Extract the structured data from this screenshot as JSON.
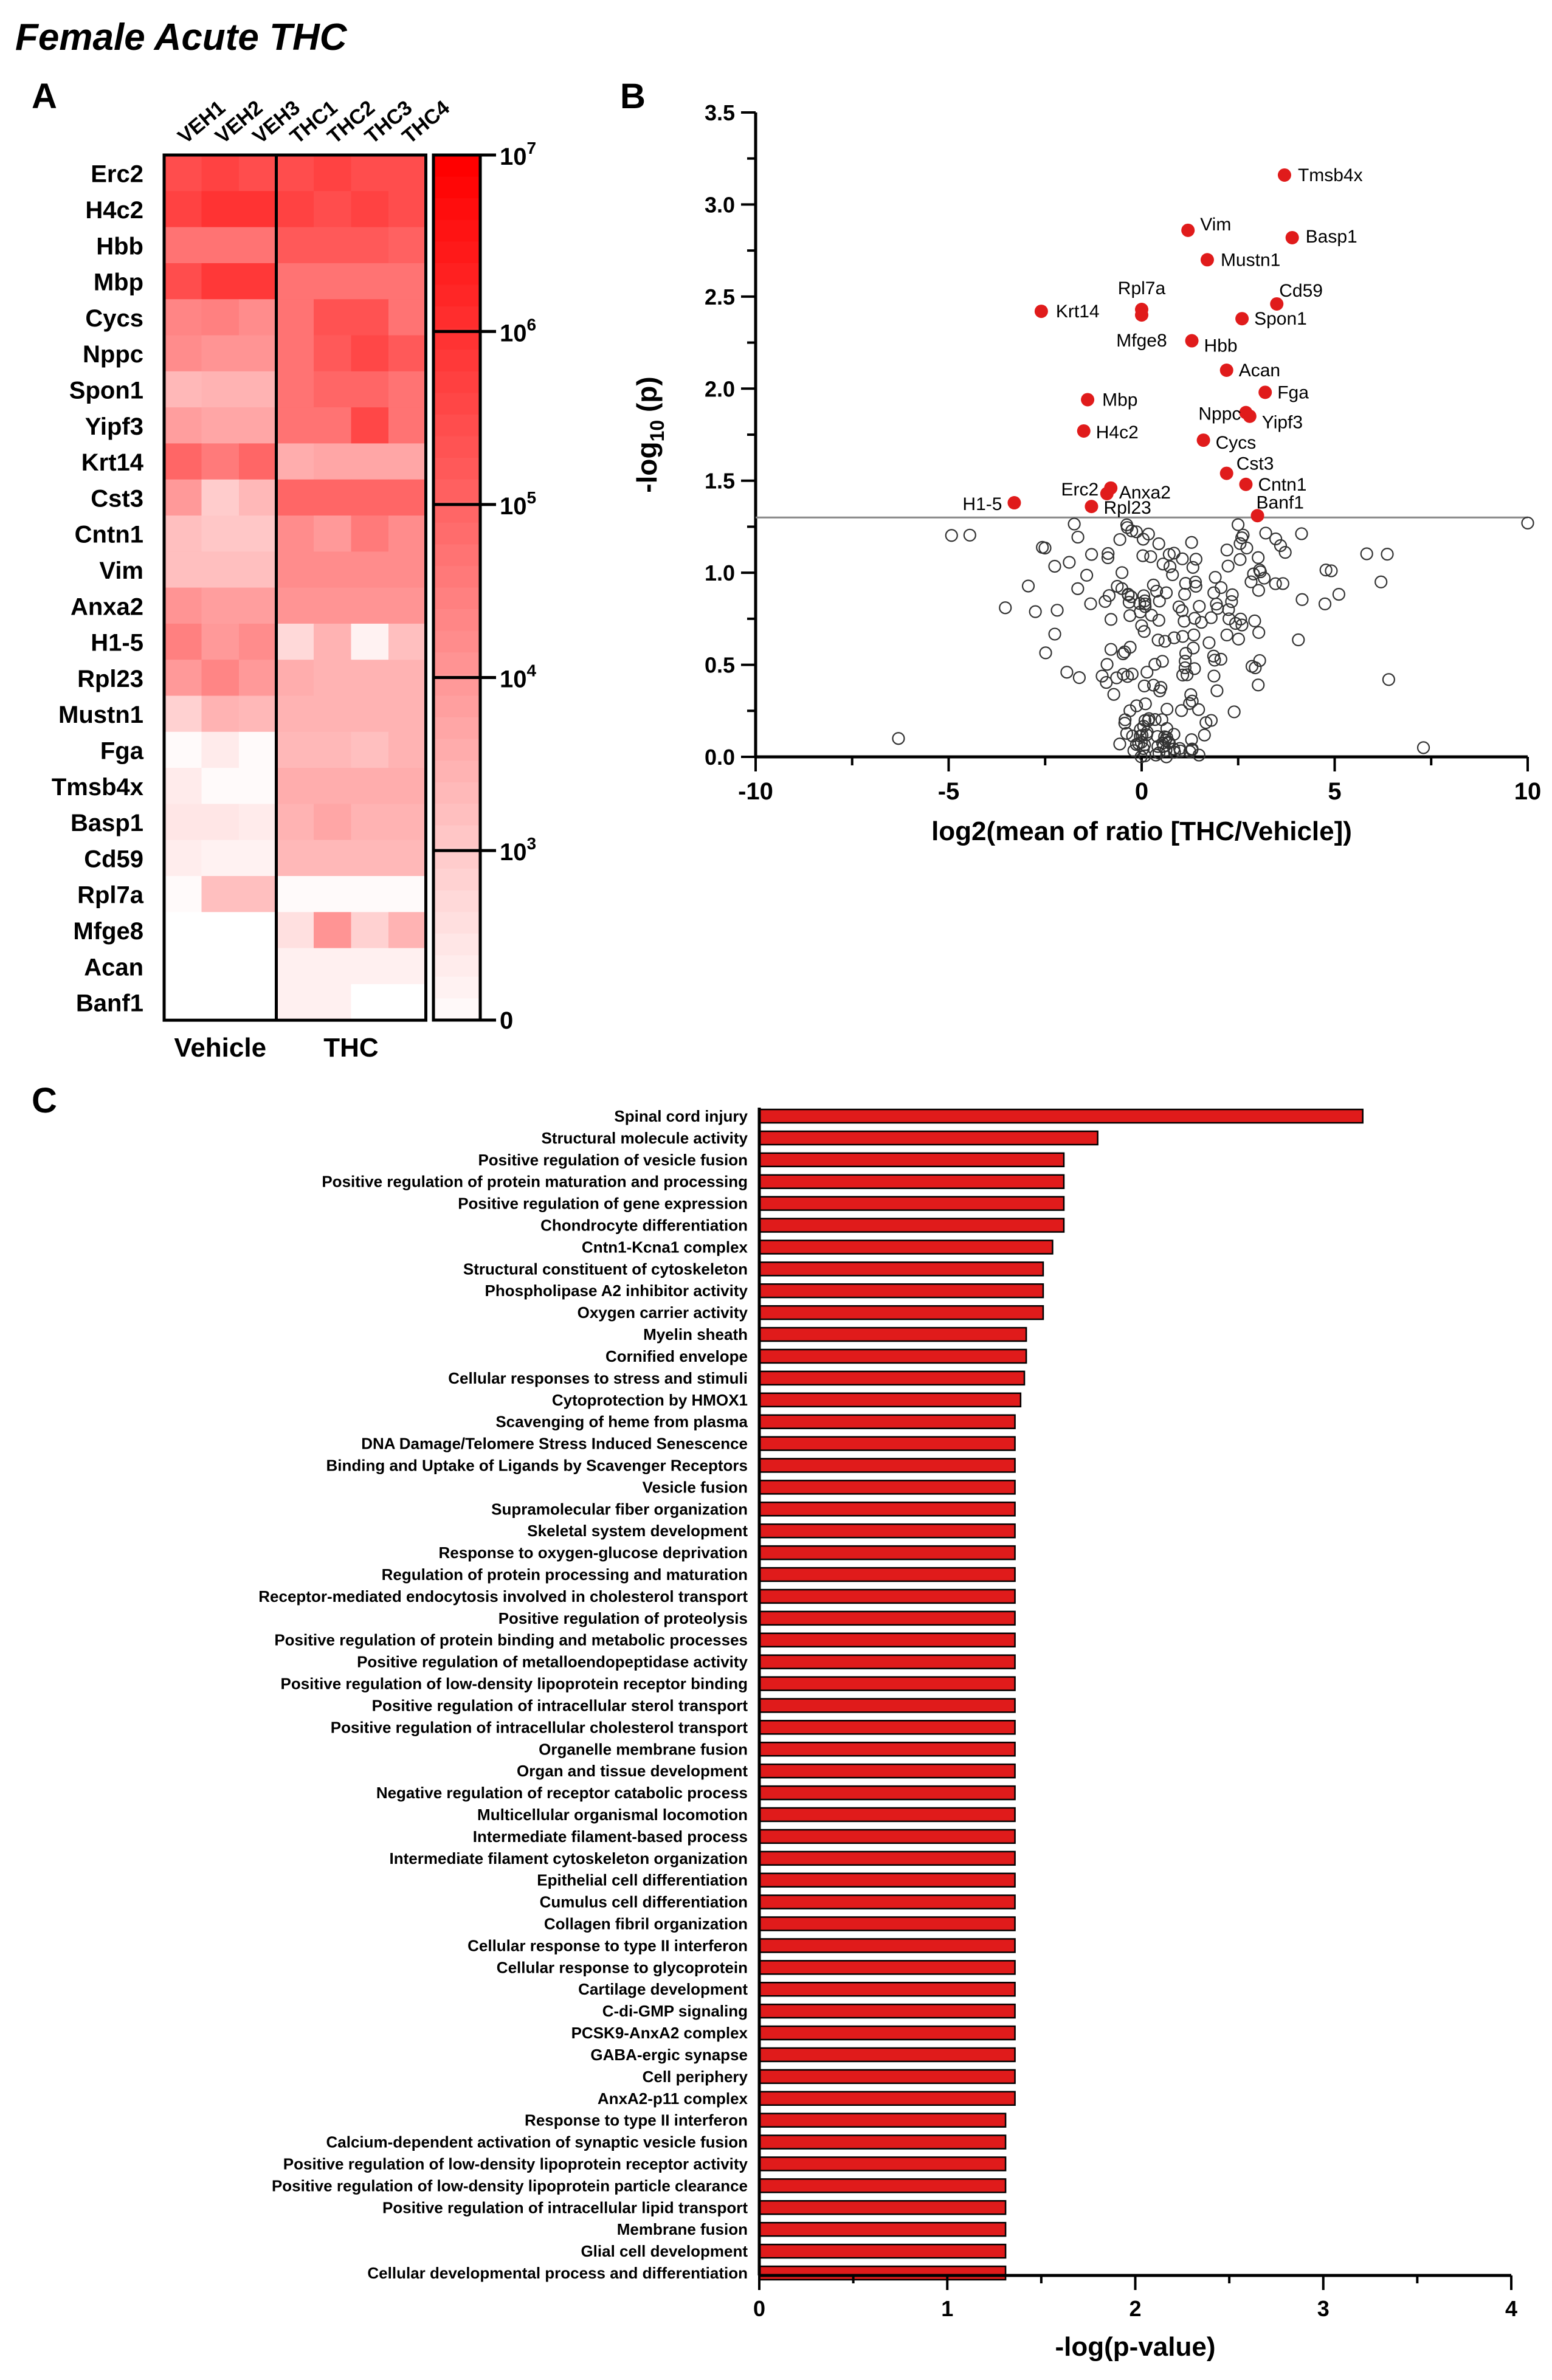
{
  "figure_title": "Female Acute THC",
  "panels": {
    "a": "A",
    "b": "B",
    "c": "C"
  },
  "colors": {
    "red": "#e01b1b",
    "heat_max": "#ff0000",
    "heat_min": "#ffffff",
    "black": "#000000",
    "gray": "#888888"
  },
  "chart_data": [
    {
      "type": "heatmap",
      "panel": "A",
      "columns": [
        "VEH1",
        "VEH2",
        "VEH3",
        "THC1",
        "THC2",
        "THC3",
        "THC4"
      ],
      "groups": [
        "Vehicle",
        "THC"
      ],
      "rows": [
        "Erc2",
        "H4c2",
        "Hbb",
        "Mbp",
        "Cycs",
        "Nppc",
        "Spon1",
        "Yipf3",
        "Krt14",
        "Cst3",
        "Cntn1",
        "Vim",
        "Anxa2",
        "H1-5",
        "Rpl23",
        "Mustn1",
        "Fga",
        "Tmsb4x",
        "Basp1",
        "Cd59",
        "Rpl7a",
        "Mfge8",
        "Acan",
        "Banf1"
      ],
      "intensity": [
        [
          0.7,
          0.74,
          0.7,
          0.7,
          0.74,
          0.7,
          0.7
        ],
        [
          0.74,
          0.8,
          0.8,
          0.74,
          0.7,
          0.74,
          0.7
        ],
        [
          0.55,
          0.55,
          0.55,
          0.65,
          0.65,
          0.65,
          0.62
        ],
        [
          0.7,
          0.78,
          0.78,
          0.55,
          0.55,
          0.55,
          0.55
        ],
        [
          0.48,
          0.5,
          0.45,
          0.55,
          0.68,
          0.68,
          0.55
        ],
        [
          0.45,
          0.42,
          0.42,
          0.55,
          0.65,
          0.72,
          0.65
        ],
        [
          0.28,
          0.3,
          0.3,
          0.55,
          0.6,
          0.6,
          0.55
        ],
        [
          0.38,
          0.35,
          0.35,
          0.55,
          0.55,
          0.72,
          0.55
        ],
        [
          0.6,
          0.52,
          0.6,
          0.32,
          0.35,
          0.35,
          0.35
        ],
        [
          0.4,
          0.2,
          0.28,
          0.6,
          0.6,
          0.6,
          0.6
        ],
        [
          0.25,
          0.22,
          0.22,
          0.45,
          0.4,
          0.52,
          0.45
        ],
        [
          0.25,
          0.25,
          0.25,
          0.45,
          0.45,
          0.45,
          0.45
        ],
        [
          0.42,
          0.38,
          0.38,
          0.42,
          0.42,
          0.42,
          0.42
        ],
        [
          0.5,
          0.4,
          0.45,
          0.15,
          0.3,
          0.05,
          0.25
        ],
        [
          0.4,
          0.48,
          0.4,
          0.32,
          0.3,
          0.3,
          0.3
        ],
        [
          0.18,
          0.3,
          0.28,
          0.3,
          0.3,
          0.3,
          0.3
        ],
        [
          0.02,
          0.08,
          0.02,
          0.28,
          0.28,
          0.25,
          0.3
        ],
        [
          0.08,
          0.02,
          0.02,
          0.32,
          0.32,
          0.32,
          0.32
        ],
        [
          0.1,
          0.1,
          0.08,
          0.3,
          0.35,
          0.3,
          0.3
        ],
        [
          0.07,
          0.05,
          0.05,
          0.28,
          0.28,
          0.28,
          0.28
        ],
        [
          0.02,
          0.25,
          0.25,
          0.02,
          0.02,
          0.02,
          0.02
        ],
        [
          0.0,
          0.0,
          0.0,
          0.12,
          0.42,
          0.18,
          0.3
        ],
        [
          0.0,
          0.0,
          0.0,
          0.06,
          0.06,
          0.06,
          0.06
        ],
        [
          0.0,
          0.0,
          0.0,
          0.06,
          0.06,
          0.0,
          0.0
        ]
      ],
      "scale": {
        "min_label": "0",
        "ticks": [
          "10",
          "10",
          "10",
          "10",
          "10"
        ],
        "tick_exponents": [
          "3",
          "4",
          "5",
          "6",
          "7"
        ],
        "tick_positions": [
          0.196,
          0.396,
          0.596,
          0.796,
          1.0
        ]
      }
    },
    {
      "type": "scatter",
      "panel": "B",
      "xlabel": "log2(mean of ratio [THC/Vehicle])",
      "ylabel_prefix": "-log",
      "ylabel_sub": "10",
      "ylabel_suffix": " (p)",
      "xlim": [
        -10,
        10
      ],
      "ylim": [
        0,
        3.5
      ],
      "xticks": [
        "-10",
        "-5",
        "0",
        "5",
        "10"
      ],
      "yticks": [
        "0.0",
        "0.5",
        "1.0",
        "1.5",
        "2.0",
        "2.5",
        "3.0",
        "3.5"
      ],
      "threshold": 1.3,
      "significant": [
        {
          "label": "Tmsb4x",
          "x": 3.7,
          "y": 3.16
        },
        {
          "label": "Vim",
          "x": 1.2,
          "y": 2.86
        },
        {
          "label": "Basp1",
          "x": 3.9,
          "y": 2.82
        },
        {
          "label": "Mustn1",
          "x": 1.7,
          "y": 2.7
        },
        {
          "label": "Cd59",
          "x": 3.5,
          "y": 2.46
        },
        {
          "label": "Rpl7a",
          "x": 0.0,
          "y": 2.43
        },
        {
          "label": "Mfge8",
          "x": 0.0,
          "y": 2.4
        },
        {
          "label": "Krt14",
          "x": -2.6,
          "y": 2.42
        },
        {
          "label": "Spon1",
          "x": 2.6,
          "y": 2.38
        },
        {
          "label": "Hbb",
          "x": 1.3,
          "y": 2.26
        },
        {
          "label": "Acan",
          "x": 2.2,
          "y": 2.1
        },
        {
          "label": "Fga",
          "x": 3.2,
          "y": 1.98
        },
        {
          "label": "Mbp",
          "x": -1.4,
          "y": 1.94
        },
        {
          "label": "Nppc",
          "x": 2.7,
          "y": 1.87
        },
        {
          "label": "Yipf3",
          "x": 2.8,
          "y": 1.85
        },
        {
          "label": "H4c2",
          "x": -1.5,
          "y": 1.77
        },
        {
          "label": "Cycs",
          "x": 1.6,
          "y": 1.72
        },
        {
          "label": "Cst3",
          "x": 2.2,
          "y": 1.54
        },
        {
          "label": "Cntn1",
          "x": 2.7,
          "y": 1.48
        },
        {
          "label": "Anxa2",
          "x": -0.9,
          "y": 1.43
        },
        {
          "label": "Erc2",
          "x": -0.8,
          "y": 1.46
        },
        {
          "label": "Rpl23",
          "x": -1.3,
          "y": 1.36
        },
        {
          "label": "H1-5",
          "x": -3.3,
          "y": 1.38
        },
        {
          "label": "Banf1",
          "x": 3.0,
          "y": 1.31
        }
      ]
    },
    {
      "type": "bar",
      "panel": "C",
      "orientation": "horizontal",
      "xlabel": "-log(p-value)",
      "xlim": [
        0,
        4
      ],
      "xticks": [
        "0",
        "1",
        "2",
        "3",
        "4"
      ],
      "categories": [
        "Spinal cord injury",
        "Structural molecule activity",
        "Positive regulation of vesicle fusion",
        "Positive regulation of protein maturation and processing",
        "Positive regulation of gene expression",
        "Chondrocyte differentiation",
        "Cntn1-Kcna1 complex",
        "Structural constituent of cytoskeleton",
        "Phospholipase A2 inhibitor activity",
        "Oxygen carrier activity",
        "Myelin sheath",
        "Cornified envelope",
        "Cellular responses to stress and stimuli",
        "Cytoprotection by HMOX1",
        "Scavenging of heme from plasma",
        "DNA Damage/Telomere Stress Induced Senescence",
        "Binding and Uptake of Ligands by Scavenger Receptors",
        "Vesicle fusion",
        "Supramolecular fiber organization",
        "Skeletal system development",
        "Response to oxygen-glucose deprivation",
        "Regulation of protein processing and maturation",
        "Receptor-mediated endocytosis involved in cholesterol transport",
        "Positive regulation of proteolysis",
        "Positive regulation of protein binding and metabolic processes",
        "Positive regulation of metalloendopeptidase activity",
        "Positive regulation of low-density lipoprotein receptor binding",
        "Positive regulation of intracellular sterol transport",
        "Positive regulation of intracellular cholesterol transport",
        "Organelle membrane fusion",
        "Organ and tissue development",
        "Negative regulation of receptor catabolic process",
        "Multicellular organismal locomotion",
        "Intermediate filament-based process",
        "Intermediate filament cytoskeleton organization",
        "Epithelial cell differentiation",
        "Cumulus cell differentiation",
        "Collagen fibril organization",
        "Cellular response to type II interferon",
        "Cellular response to glycoprotein",
        "Cartilage development",
        "C-di-GMP signaling",
        "PCSK9-AnxA2 complex",
        "GABA-ergic synapse",
        "Cell periphery",
        "AnxA2-p11 complex",
        "Response to type II interferon",
        "Calcium-dependent activation of synaptic vesicle fusion",
        "Positive regulation of low-density lipoprotein receptor activity",
        "Positive regulation of low-density lipoprotein particle clearance",
        "Positive regulation of intracellular lipid transport",
        "Membrane fusion",
        "Glial cell development",
        "Cellular developmental process and differentiation"
      ],
      "values": [
        3.21,
        1.8,
        1.62,
        1.62,
        1.62,
        1.62,
        1.56,
        1.51,
        1.51,
        1.51,
        1.42,
        1.42,
        1.41,
        1.39,
        1.36,
        1.36,
        1.36,
        1.36,
        1.36,
        1.36,
        1.36,
        1.36,
        1.36,
        1.36,
        1.36,
        1.36,
        1.36,
        1.36,
        1.36,
        1.36,
        1.36,
        1.36,
        1.36,
        1.36,
        1.36,
        1.36,
        1.36,
        1.36,
        1.36,
        1.36,
        1.36,
        1.36,
        1.36,
        1.36,
        1.36,
        1.36,
        1.31,
        1.31,
        1.31,
        1.31,
        1.31,
        1.31,
        1.31,
        1.31
      ]
    }
  ]
}
